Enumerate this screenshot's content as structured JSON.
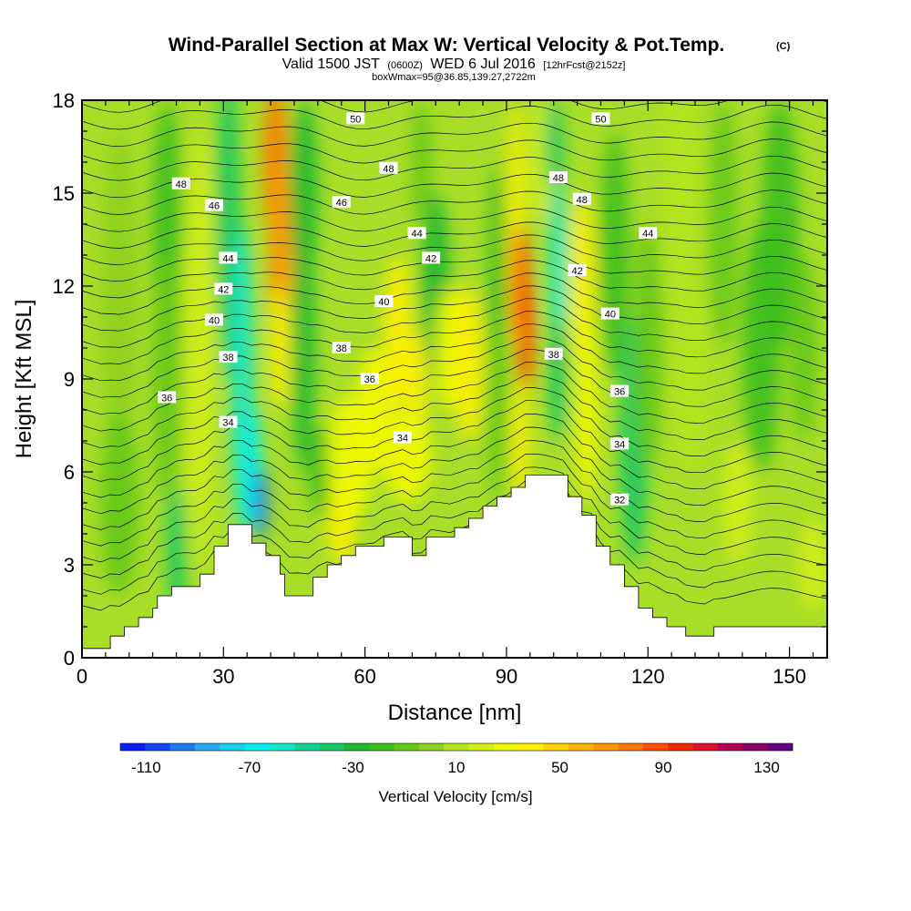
{
  "chart_data": {
    "type": "heatmap",
    "title": "Wind-Parallel Section at Max W: Vertical Velocity & Pot.Temp.",
    "title_mark": "(C)",
    "subtitle": {
      "part1": "Valid 1500 JST",
      "part2": "(0600Z)",
      "part3": "WED 6 Jul 2016",
      "part4": "[12hrFcst@2152z]"
    },
    "subtitle2": "boxWmax=95@36.85,139.27,2722m",
    "xlabel": "Distance [nm]",
    "ylabel": "Height [Kft MSL]",
    "xlim": [
      0,
      158
    ],
    "ylim": [
      0,
      18
    ],
    "x_ticks": [
      0,
      30,
      60,
      90,
      120,
      150
    ],
    "y_ticks": [
      0,
      3,
      6,
      9,
      12,
      15,
      18
    ],
    "colorbar": {
      "label": "Vertical Velocity [cm/s]",
      "min": -120,
      "max": 140,
      "step": 10,
      "tick_labels": [
        -110,
        -70,
        -30,
        10,
        50,
        90,
        130
      ],
      "colors": [
        "#0a1ef5",
        "#1446f5",
        "#1e78f0",
        "#28aaf0",
        "#14d2f0",
        "#00f0f0",
        "#14e6c8",
        "#14d296",
        "#14c864",
        "#1eb932",
        "#3cbe1e",
        "#64c814",
        "#8cd21e",
        "#b4e61e",
        "#d2f014",
        "#f0fa00",
        "#fff000",
        "#ffd200",
        "#ffb400",
        "#ff9600",
        "#ff7800",
        "#ff5000",
        "#f02800",
        "#dc1432",
        "#b40050",
        "#8c0064",
        "#640082"
      ]
    },
    "contours": {
      "variable": "Potential Temperature",
      "labels": [
        {
          "text": "50",
          "x": 58,
          "y": 17.4
        },
        {
          "text": "50",
          "x": 110,
          "y": 17.4
        },
        {
          "text": "48",
          "x": 21,
          "y": 15.3
        },
        {
          "text": "48",
          "x": 65,
          "y": 15.8
        },
        {
          "text": "48",
          "x": 101,
          "y": 15.5
        },
        {
          "text": "48",
          "x": 106,
          "y": 14.8
        },
        {
          "text": "46",
          "x": 28,
          "y": 14.6
        },
        {
          "text": "46",
          "x": 55,
          "y": 14.7
        },
        {
          "text": "44",
          "x": 31,
          "y": 12.9
        },
        {
          "text": "44",
          "x": 71,
          "y": 13.7
        },
        {
          "text": "44",
          "x": 120,
          "y": 13.7
        },
        {
          "text": "42",
          "x": 30,
          "y": 11.9
        },
        {
          "text": "42",
          "x": 74,
          "y": 12.9
        },
        {
          "text": "42",
          "x": 105,
          "y": 12.5
        },
        {
          "text": "40",
          "x": 28,
          "y": 10.9
        },
        {
          "text": "40",
          "x": 64,
          "y": 11.5
        },
        {
          "text": "40",
          "x": 112,
          "y": 11.1
        },
        {
          "text": "38",
          "x": 31,
          "y": 9.7
        },
        {
          "text": "38",
          "x": 55,
          "y": 10.0
        },
        {
          "text": "38",
          "x": 100,
          "y": 9.8
        },
        {
          "text": "36",
          "x": 18,
          "y": 8.4
        },
        {
          "text": "36",
          "x": 61,
          "y": 9.0
        },
        {
          "text": "36",
          "x": 114,
          "y": 8.6
        },
        {
          "text": "34",
          "x": 31,
          "y": 7.6
        },
        {
          "text": "34",
          "x": 68,
          "y": 7.1
        },
        {
          "text": "34",
          "x": 114,
          "y": 6.9
        },
        {
          "text": "32",
          "x": 114,
          "y": 5.1
        }
      ]
    },
    "terrain": [
      [
        0,
        0.3
      ],
      [
        6,
        0.3
      ],
      [
        6,
        0.7
      ],
      [
        9,
        0.7
      ],
      [
        9,
        1.0
      ],
      [
        12,
        1.0
      ],
      [
        12,
        1.3
      ],
      [
        15,
        1.3
      ],
      [
        15,
        1.6
      ],
      [
        16,
        1.6
      ],
      [
        16,
        2.0
      ],
      [
        19,
        2.0
      ],
      [
        19,
        2.3
      ],
      [
        25,
        2.3
      ],
      [
        25,
        2.7
      ],
      [
        28,
        2.7
      ],
      [
        28,
        3.6
      ],
      [
        31,
        3.6
      ],
      [
        31,
        4.3
      ],
      [
        36,
        4.3
      ],
      [
        36,
        3.7
      ],
      [
        39,
        3.7
      ],
      [
        39,
        3.3
      ],
      [
        42,
        3.3
      ],
      [
        42,
        2.7
      ],
      [
        43,
        2.7
      ],
      [
        43,
        2.0
      ],
      [
        49,
        2.0
      ],
      [
        49,
        2.6
      ],
      [
        52,
        2.6
      ],
      [
        52,
        3.0
      ],
      [
        55,
        3.0
      ],
      [
        55,
        3.3
      ],
      [
        58,
        3.3
      ],
      [
        58,
        3.6
      ],
      [
        64,
        3.6
      ],
      [
        64,
        3.9
      ],
      [
        70,
        3.9
      ],
      [
        70,
        3.3
      ],
      [
        73,
        3.3
      ],
      [
        73,
        3.9
      ],
      [
        79,
        3.9
      ],
      [
        79,
        4.2
      ],
      [
        82,
        4.2
      ],
      [
        82,
        4.5
      ],
      [
        85,
        4.5
      ],
      [
        85,
        4.9
      ],
      [
        88,
        4.9
      ],
      [
        88,
        5.2
      ],
      [
        91,
        5.2
      ],
      [
        91,
        5.5
      ],
      [
        94,
        5.5
      ],
      [
        94,
        5.9
      ],
      [
        100,
        5.9
      ],
      [
        100,
        5.9
      ],
      [
        103,
        5.9
      ],
      [
        103,
        5.2
      ],
      [
        106,
        5.2
      ],
      [
        106,
        4.6
      ],
      [
        109,
        4.6
      ],
      [
        109,
        3.6
      ],
      [
        112,
        3.6
      ],
      [
        112,
        3.0
      ],
      [
        115,
        3.0
      ],
      [
        115,
        2.3
      ],
      [
        118,
        2.3
      ],
      [
        118,
        1.6
      ],
      [
        121,
        1.6
      ],
      [
        121,
        1.3
      ],
      [
        124,
        1.3
      ],
      [
        124,
        1.0
      ],
      [
        128,
        1.0
      ],
      [
        128,
        0.7
      ],
      [
        134,
        0.7
      ],
      [
        134,
        1.0
      ],
      [
        158,
        1.0
      ]
    ]
  }
}
